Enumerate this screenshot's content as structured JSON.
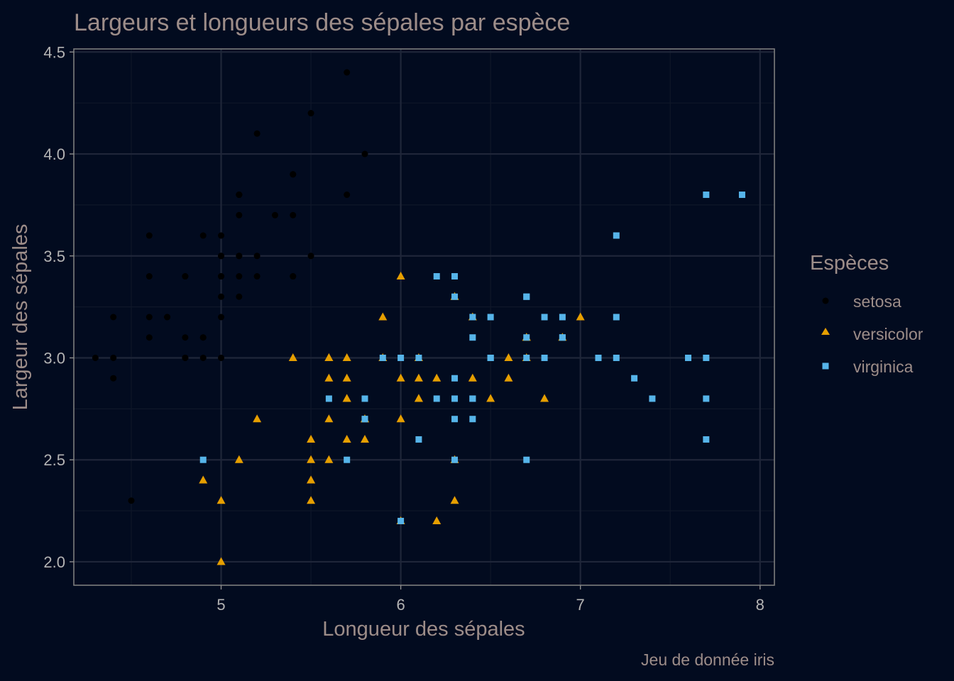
{
  "chart_data": {
    "type": "scatter",
    "title": "Largeurs et longueurs des sépales par espèce",
    "xlabel": "Longueur des sépales",
    "ylabel": "Largeur des sépales",
    "caption": "Jeu de donnée iris",
    "xlim": [
      4.18,
      8.08
    ],
    "ylim": [
      1.885,
      4.515
    ],
    "xticks": [
      "5",
      "6",
      "7",
      "8"
    ],
    "yticks": [
      "2.0",
      "2.5",
      "3.0",
      "3.5",
      "4.0",
      "4.5"
    ],
    "grid": true,
    "legend": {
      "title": "Espèces",
      "position": "right"
    },
    "colors": {
      "background": "#020b1f",
      "text": "#9d8d89",
      "tick_text": "#b4b4b4",
      "grid_major": "#1f2639",
      "grid_minor": "#0f1729",
      "axis": "#8c8c8c"
    },
    "series": [
      {
        "name": "setosa",
        "marker": "circle",
        "color": "#000000",
        "points": [
          [
            5.1,
            3.5
          ],
          [
            4.9,
            3.0
          ],
          [
            4.7,
            3.2
          ],
          [
            4.6,
            3.1
          ],
          [
            5.0,
            3.6
          ],
          [
            5.4,
            3.9
          ],
          [
            4.6,
            3.4
          ],
          [
            5.0,
            3.4
          ],
          [
            4.4,
            2.9
          ],
          [
            4.9,
            3.1
          ],
          [
            5.4,
            3.7
          ],
          [
            4.8,
            3.4
          ],
          [
            4.8,
            3.0
          ],
          [
            4.3,
            3.0
          ],
          [
            5.8,
            4.0
          ],
          [
            5.7,
            4.4
          ],
          [
            5.4,
            3.9
          ],
          [
            5.1,
            3.5
          ],
          [
            5.7,
            3.8
          ],
          [
            5.1,
            3.8
          ],
          [
            5.4,
            3.4
          ],
          [
            5.1,
            3.7
          ],
          [
            4.6,
            3.6
          ],
          [
            5.1,
            3.3
          ],
          [
            4.8,
            3.4
          ],
          [
            5.0,
            3.0
          ],
          [
            5.0,
            3.4
          ],
          [
            5.2,
            3.5
          ],
          [
            5.2,
            3.4
          ],
          [
            4.7,
            3.2
          ],
          [
            4.8,
            3.1
          ],
          [
            5.4,
            3.4
          ],
          [
            5.2,
            4.1
          ],
          [
            5.5,
            4.2
          ],
          [
            4.9,
            3.1
          ],
          [
            5.0,
            3.2
          ],
          [
            5.5,
            3.5
          ],
          [
            4.9,
            3.6
          ],
          [
            4.4,
            3.0
          ],
          [
            5.1,
            3.4
          ],
          [
            5.0,
            3.5
          ],
          [
            4.5,
            2.3
          ],
          [
            4.4,
            3.2
          ],
          [
            5.0,
            3.5
          ],
          [
            5.1,
            3.8
          ],
          [
            4.8,
            3.0
          ],
          [
            5.1,
            3.8
          ],
          [
            4.6,
            3.2
          ],
          [
            5.3,
            3.7
          ],
          [
            5.0,
            3.3
          ]
        ]
      },
      {
        "name": "versicolor",
        "marker": "triangle",
        "color": "#e69f00",
        "points": [
          [
            7.0,
            3.2
          ],
          [
            6.4,
            3.2
          ],
          [
            6.9,
            3.1
          ],
          [
            5.5,
            2.3
          ],
          [
            6.5,
            2.8
          ],
          [
            5.7,
            2.8
          ],
          [
            6.3,
            3.3
          ],
          [
            4.9,
            2.4
          ],
          [
            6.6,
            2.9
          ],
          [
            5.2,
            2.7
          ],
          [
            5.0,
            2.0
          ],
          [
            5.9,
            3.0
          ],
          [
            6.0,
            2.2
          ],
          [
            6.1,
            2.9
          ],
          [
            5.6,
            2.9
          ],
          [
            6.7,
            3.1
          ],
          [
            5.6,
            3.0
          ],
          [
            5.8,
            2.7
          ],
          [
            6.2,
            2.2
          ],
          [
            5.6,
            2.5
          ],
          [
            5.9,
            3.2
          ],
          [
            6.1,
            2.8
          ],
          [
            6.3,
            2.5
          ],
          [
            6.1,
            2.8
          ],
          [
            6.4,
            2.9
          ],
          [
            6.6,
            3.0
          ],
          [
            6.8,
            2.8
          ],
          [
            6.7,
            3.0
          ],
          [
            6.0,
            2.9
          ],
          [
            5.7,
            2.6
          ],
          [
            5.5,
            2.4
          ],
          [
            5.5,
            2.4
          ],
          [
            5.8,
            2.7
          ],
          [
            6.0,
            2.7
          ],
          [
            5.4,
            3.0
          ],
          [
            6.0,
            3.4
          ],
          [
            6.7,
            3.1
          ],
          [
            6.3,
            2.3
          ],
          [
            5.6,
            3.0
          ],
          [
            5.5,
            2.5
          ],
          [
            5.5,
            2.6
          ],
          [
            6.1,
            3.0
          ],
          [
            5.8,
            2.6
          ],
          [
            5.0,
            2.3
          ],
          [
            5.6,
            2.7
          ],
          [
            5.7,
            3.0
          ],
          [
            5.7,
            2.9
          ],
          [
            6.2,
            2.9
          ],
          [
            5.1,
            2.5
          ],
          [
            5.7,
            2.8
          ]
        ]
      },
      {
        "name": "virginica",
        "marker": "square",
        "color": "#56b4e9",
        "points": [
          [
            6.3,
            3.3
          ],
          [
            5.8,
            2.7
          ],
          [
            7.1,
            3.0
          ],
          [
            6.3,
            2.9
          ],
          [
            6.5,
            3.0
          ],
          [
            7.6,
            3.0
          ],
          [
            4.9,
            2.5
          ],
          [
            7.3,
            2.9
          ],
          [
            6.7,
            2.5
          ],
          [
            7.2,
            3.6
          ],
          [
            6.5,
            3.2
          ],
          [
            6.4,
            2.7
          ],
          [
            6.8,
            3.0
          ],
          [
            5.7,
            2.5
          ],
          [
            5.8,
            2.8
          ],
          [
            6.4,
            3.2
          ],
          [
            6.5,
            3.0
          ],
          [
            7.7,
            3.8
          ],
          [
            7.7,
            2.6
          ],
          [
            6.0,
            2.2
          ],
          [
            6.9,
            3.2
          ],
          [
            5.6,
            2.8
          ],
          [
            7.7,
            2.8
          ],
          [
            6.3,
            2.7
          ],
          [
            6.7,
            3.3
          ],
          [
            7.2,
            3.2
          ],
          [
            6.2,
            2.8
          ],
          [
            6.1,
            3.0
          ],
          [
            6.4,
            2.8
          ],
          [
            7.2,
            3.0
          ],
          [
            7.4,
            2.8
          ],
          [
            7.9,
            3.8
          ],
          [
            6.4,
            2.8
          ],
          [
            6.3,
            2.8
          ],
          [
            6.1,
            2.6
          ],
          [
            7.7,
            3.0
          ],
          [
            6.3,
            3.4
          ],
          [
            6.4,
            3.1
          ],
          [
            6.0,
            3.0
          ],
          [
            6.9,
            3.1
          ],
          [
            6.7,
            3.1
          ],
          [
            6.9,
            3.1
          ],
          [
            5.8,
            2.7
          ],
          [
            6.8,
            3.2
          ],
          [
            6.7,
            3.3
          ],
          [
            6.7,
            3.0
          ],
          [
            6.3,
            2.5
          ],
          [
            6.5,
            3.0
          ],
          [
            6.2,
            3.4
          ],
          [
            5.9,
            3.0
          ]
        ]
      }
    ]
  }
}
